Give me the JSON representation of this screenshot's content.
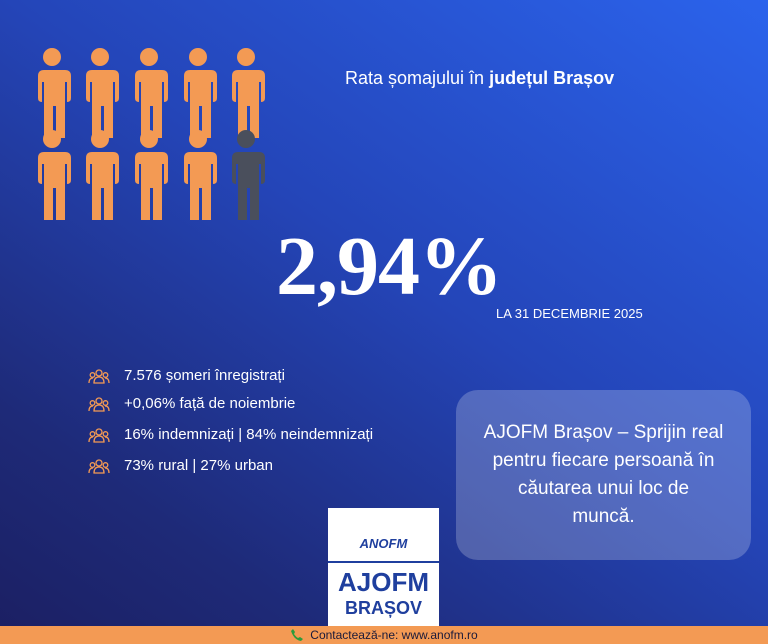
{
  "header": {
    "title_prefix": "Rata șomajului în",
    "title_bold": "județul Brașov"
  },
  "headline": {
    "rate": "2,94%",
    "date": "LA 31 DECEMBRIE 2025"
  },
  "stats": [
    "7.576 șomeri înregistrați",
    "+0,06% față de noiembrie",
    "16% indemnizați | 84% neindemnizați",
    "73% rural | 27% urban"
  ],
  "callout": {
    "lines": [
      "AJOFM Brașov – Sprijin real",
      "pentru fiecare persoană în",
      "căutarea unui loc de",
      "muncă."
    ]
  },
  "logo": {
    "top": "ANOFM",
    "middle": "AJOFM",
    "bottom": "BRAȘOV"
  },
  "footer": {
    "contact": "Contactează-ne: www.anofm.ro"
  }
}
